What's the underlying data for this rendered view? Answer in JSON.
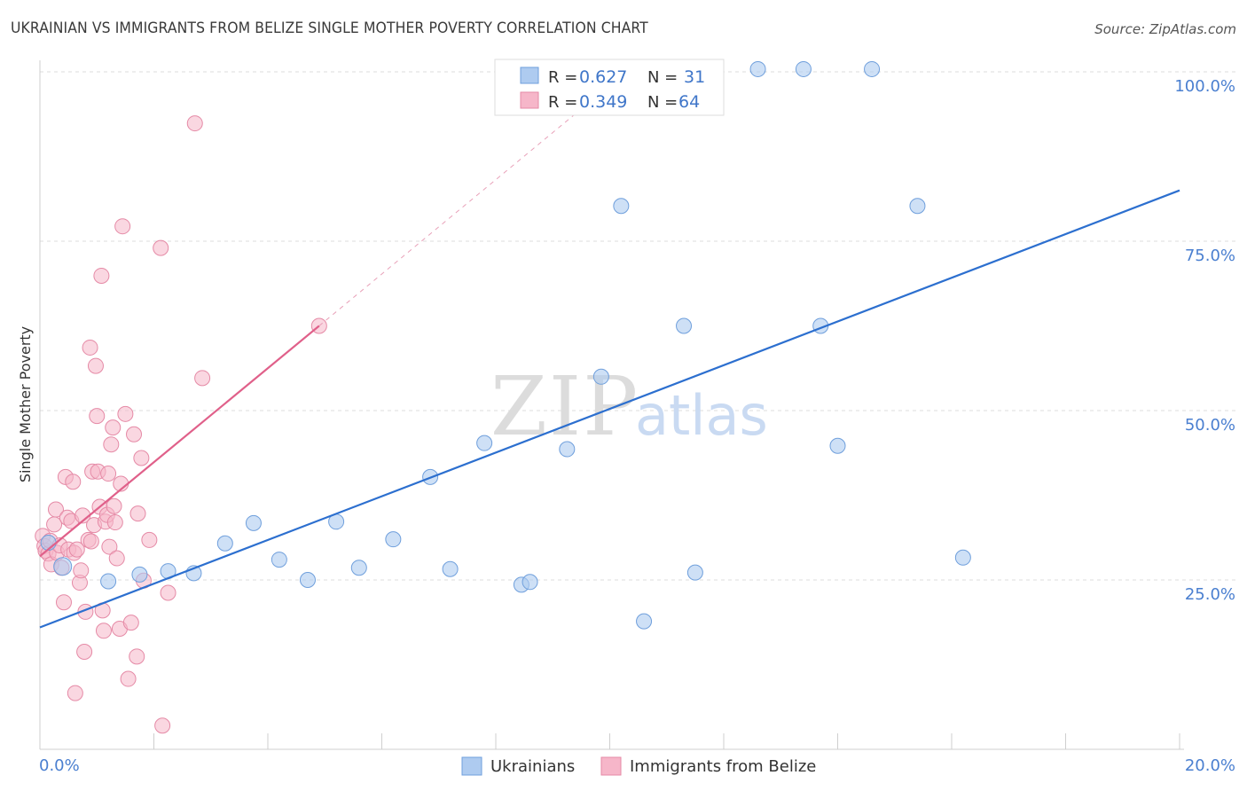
{
  "header": {
    "title": "UKRAINIAN VS IMMIGRANTS FROM BELIZE SINGLE MOTHER POVERTY CORRELATION CHART",
    "source": "Source: ZipAtlas.com"
  },
  "watermark": {
    "part1": "ZIP",
    "part2": "atlas"
  },
  "colors": {
    "blue_fill": "#aecbf0",
    "blue_stroke": "#6f9fdc",
    "blue_line": "#2c6fcf",
    "pink_fill": "#f6b6c9",
    "pink_stroke": "#e58aa6",
    "pink_line": "#e0608a",
    "grid": "#dddddd",
    "axis_text": "#4a7fd0"
  },
  "legend": {
    "rows": [
      {
        "r_label": "R = ",
        "r_value": "0.627",
        "n_label": "N = ",
        "n_value": "31"
      },
      {
        "r_label": "R = ",
        "r_value": "0.349",
        "n_label": "N = ",
        "n_value": "64"
      }
    ],
    "bottom": [
      "Ukrainians",
      "Immigrants from Belize"
    ]
  },
  "chart_data": {
    "type": "scatter",
    "title": "UKRAINIAN VS IMMIGRANTS FROM BELIZE SINGLE MOTHER POVERTY CORRELATION CHART",
    "xlabel": "",
    "ylabel": "Single Mother Poverty",
    "xlim": [
      0,
      20
    ],
    "ylim": [
      0,
      103
    ],
    "x_tick_labels": [
      "0.0%",
      "20.0%"
    ],
    "y_ticks": [
      25,
      50,
      75,
      100
    ],
    "y_tick_labels": [
      "25.0%",
      "50.0%",
      "75.0%",
      "100.0%"
    ],
    "grid": true,
    "legend_position": "top-center",
    "series": [
      {
        "name": "Ukrainians",
        "color": "#aecbf0",
        "trend": {
          "x": [
            0,
            20
          ],
          "y": [
            18.0,
            82.5
          ]
        },
        "points": [
          [
            0.15,
            30.5
          ],
          [
            0.4,
            27.0
          ],
          [
            1.2,
            24.8
          ],
          [
            1.75,
            25.8
          ],
          [
            2.25,
            26.3
          ],
          [
            2.7,
            26.0
          ],
          [
            3.25,
            30.4
          ],
          [
            3.75,
            33.4
          ],
          [
            4.2,
            28.0
          ],
          [
            4.7,
            25.0
          ],
          [
            5.2,
            33.6
          ],
          [
            5.6,
            26.8
          ],
          [
            6.2,
            31.0
          ],
          [
            6.85,
            40.2
          ],
          [
            7.2,
            26.6
          ],
          [
            7.8,
            45.2
          ],
          [
            8.45,
            24.3
          ],
          [
            8.6,
            24.7
          ],
          [
            9.25,
            44.3
          ],
          [
            9.85,
            55.0
          ],
          [
            10.2,
            80.2
          ],
          [
            10.6,
            18.9
          ],
          [
            11.3,
            62.5
          ],
          [
            11.5,
            26.1
          ],
          [
            12.6,
            100.4
          ],
          [
            13.4,
            100.4
          ],
          [
            13.7,
            62.5
          ],
          [
            14.0,
            44.8
          ],
          [
            14.6,
            100.4
          ],
          [
            15.4,
            80.2
          ],
          [
            16.2,
            28.3
          ]
        ]
      },
      {
        "name": "Immigrants from Belize",
        "color": "#f6b6c9",
        "trend": {
          "x": [
            0,
            4.9
          ],
          "y": [
            28.5,
            62.5
          ]
        },
        "trend_dashed": {
          "x": [
            4.9,
            10.0
          ],
          "y": [
            62.5,
            98.0
          ]
        },
        "points": [
          [
            0.05,
            31.5
          ],
          [
            0.08,
            30.0
          ],
          [
            0.1,
            29.3
          ],
          [
            0.15,
            28.9
          ],
          [
            0.18,
            30.8
          ],
          [
            0.2,
            27.3
          ],
          [
            0.25,
            33.2
          ],
          [
            0.28,
            35.4
          ],
          [
            0.3,
            29.0
          ],
          [
            0.35,
            30.1
          ],
          [
            0.38,
            26.8
          ],
          [
            0.42,
            21.7
          ],
          [
            0.45,
            40.2
          ],
          [
            0.48,
            34.2
          ],
          [
            0.5,
            29.5
          ],
          [
            0.55,
            33.7
          ],
          [
            0.58,
            39.5
          ],
          [
            0.6,
            29.0
          ],
          [
            0.62,
            8.3
          ],
          [
            0.65,
            29.5
          ],
          [
            0.7,
            24.6
          ],
          [
            0.72,
            26.4
          ],
          [
            0.75,
            34.5
          ],
          [
            0.78,
            14.4
          ],
          [
            0.8,
            20.3
          ],
          [
            0.85,
            30.9
          ],
          [
            0.88,
            59.3
          ],
          [
            0.9,
            30.7
          ],
          [
            0.92,
            41.0
          ],
          [
            0.95,
            33.1
          ],
          [
            0.98,
            56.6
          ],
          [
            1.0,
            49.2
          ],
          [
            1.02,
            41.0
          ],
          [
            1.05,
            35.8
          ],
          [
            1.08,
            69.9
          ],
          [
            1.1,
            20.5
          ],
          [
            1.12,
            17.5
          ],
          [
            1.15,
            33.6
          ],
          [
            1.18,
            34.6
          ],
          [
            1.2,
            40.7
          ],
          [
            1.22,
            29.9
          ],
          [
            1.25,
            45.0
          ],
          [
            1.28,
            47.5
          ],
          [
            1.3,
            35.9
          ],
          [
            1.32,
            33.5
          ],
          [
            1.35,
            28.2
          ],
          [
            1.4,
            17.8
          ],
          [
            1.42,
            39.2
          ],
          [
            1.45,
            77.2
          ],
          [
            1.5,
            49.5
          ],
          [
            1.55,
            10.4
          ],
          [
            1.6,
            18.7
          ],
          [
            1.65,
            46.5
          ],
          [
            1.7,
            13.7
          ],
          [
            1.72,
            34.8
          ],
          [
            1.78,
            43.0
          ],
          [
            1.82,
            24.9
          ],
          [
            1.92,
            30.9
          ],
          [
            2.12,
            74.0
          ],
          [
            2.15,
            3.5
          ],
          [
            2.25,
            23.1
          ],
          [
            2.72,
            92.4
          ],
          [
            2.85,
            54.8
          ],
          [
            4.9,
            62.5
          ]
        ]
      }
    ]
  }
}
